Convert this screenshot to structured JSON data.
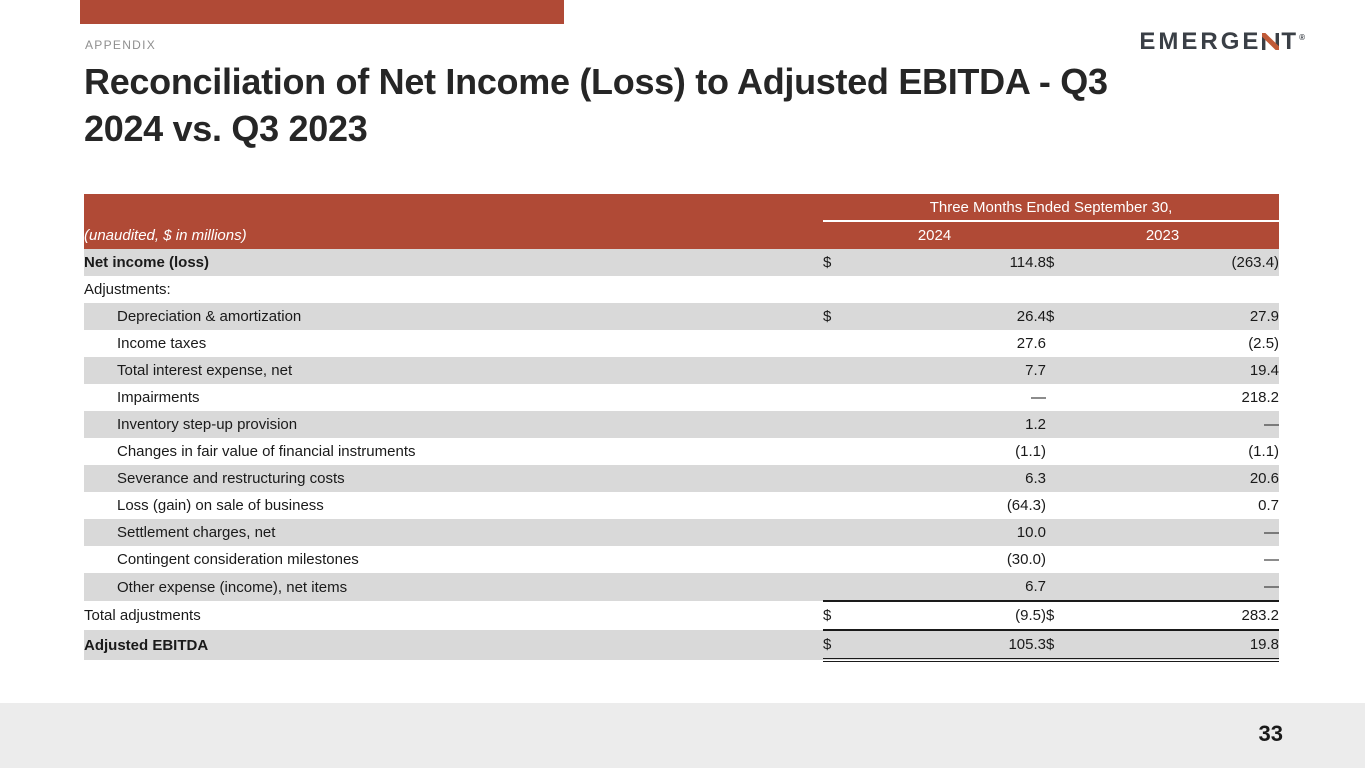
{
  "slide": {
    "section_label": "APPENDIX",
    "title_line1": "Reconciliation of Net Income (Loss) to Adjusted EBITDA - Q3",
    "title_line2": "2024 vs. Q3 2023",
    "page_number": "33"
  },
  "logo": {
    "prefix": "EMERGE",
    "suffix": "T",
    "mark": "®"
  },
  "colors": {
    "accent_red": "#b04a36",
    "row_shade": "#d9d9d9",
    "footer_gray": "#ececec",
    "logo_dark": "#3a3f46",
    "logo_red": "#c05a38"
  },
  "table": {
    "note": "(unaudited, $ in millions)",
    "period_header": "Three Months Ended September 30,",
    "columns": [
      "2024",
      "2023"
    ],
    "rows": [
      {
        "label": "Net income (loss)",
        "bold": true,
        "indent": false,
        "shaded": true,
        "d1": "$",
        "v1": "114.8",
        "d2": "$",
        "v2": "(263.4)"
      },
      {
        "label": "Adjustments:",
        "bold": false,
        "indent": false,
        "shaded": false,
        "d1": "",
        "v1": "",
        "d2": "",
        "v2": ""
      },
      {
        "label": "Depreciation & amortization",
        "bold": false,
        "indent": true,
        "shaded": true,
        "d1": "$",
        "v1": "26.4",
        "d2": "$",
        "v2": "27.9"
      },
      {
        "label": "Income taxes",
        "bold": false,
        "indent": true,
        "shaded": false,
        "d1": "",
        "v1": "27.6",
        "d2": "",
        "v2": "(2.5)"
      },
      {
        "label": "Total interest expense, net",
        "bold": false,
        "indent": true,
        "shaded": true,
        "d1": "",
        "v1": "7.7",
        "d2": "",
        "v2": "19.4"
      },
      {
        "label": "Impairments",
        "bold": false,
        "indent": true,
        "shaded": false,
        "d1": "",
        "v1": "—",
        "d2": "",
        "v2": "218.2"
      },
      {
        "label": "Inventory step-up provision",
        "bold": false,
        "indent": true,
        "shaded": true,
        "d1": "",
        "v1": "1.2",
        "d2": "",
        "v2": "—"
      },
      {
        "label": "Changes in fair value of financial instruments",
        "bold": false,
        "indent": true,
        "shaded": false,
        "d1": "",
        "v1": "(1.1)",
        "d2": "",
        "v2": "(1.1)"
      },
      {
        "label": "Severance and restructuring costs",
        "bold": false,
        "indent": true,
        "shaded": true,
        "d1": "",
        "v1": "6.3",
        "d2": "",
        "v2": "20.6"
      },
      {
        "label": "Loss (gain) on sale of business",
        "bold": false,
        "indent": true,
        "shaded": false,
        "d1": "",
        "v1": "(64.3)",
        "d2": "",
        "v2": "0.7"
      },
      {
        "label": "Settlement charges, net",
        "bold": false,
        "indent": true,
        "shaded": true,
        "d1": "",
        "v1": "10.0",
        "d2": "",
        "v2": "—"
      },
      {
        "label": "Contingent consideration milestones",
        "bold": false,
        "indent": true,
        "shaded": false,
        "d1": "",
        "v1": "(30.0)",
        "d2": "",
        "v2": "—"
      },
      {
        "label": "Other expense (income), net items",
        "bold": false,
        "indent": true,
        "shaded": true,
        "d1": "",
        "v1": "6.7",
        "d2": "",
        "v2": "—"
      },
      {
        "label": "Total adjustments",
        "bold": false,
        "indent": false,
        "shaded": false,
        "rule_top": true,
        "d1": "$",
        "v1": "(9.5)",
        "d2": "$",
        "v2": "283.2"
      },
      {
        "label": "Adjusted EBITDA",
        "bold": true,
        "indent": false,
        "shaded": true,
        "rule_top": true,
        "double_bottom": true,
        "d1": "$",
        "v1": "105.3",
        "d2": "$",
        "v2": "19.8"
      }
    ]
  }
}
